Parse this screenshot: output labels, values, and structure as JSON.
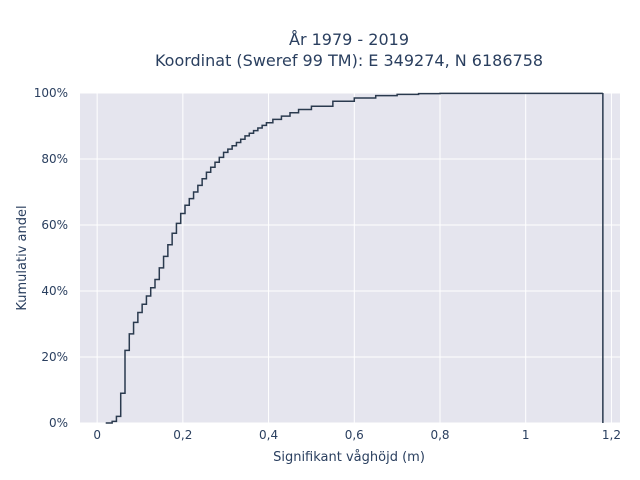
{
  "chart_data": {
    "type": "line",
    "subtype": "step-ecdf",
    "title_lines": [
      "År 1979 - 2019",
      "Koordinat (Sweref 99 TM): E 349274, N 6186758"
    ],
    "xlabel": "Signifikant våghöjd (m)",
    "ylabel": "Kumulativ andel",
    "xlim": [
      -0.04,
      1.22
    ],
    "ylim": [
      0,
      1.0
    ],
    "x_ticks": [
      0,
      0.2,
      0.4,
      0.6,
      0.8,
      1.0,
      1.2
    ],
    "x_tick_labels": [
      "0",
      "0,2",
      "0,4",
      "0,6",
      "0,8",
      "1",
      "1,2"
    ],
    "y_ticks": [
      0,
      0.2,
      0.4,
      0.6,
      0.8,
      1.0
    ],
    "y_tick_labels": [
      "0%",
      "20%",
      "40%",
      "60%",
      "80%",
      "100%"
    ],
    "grid": true,
    "legend": "none",
    "colors": {
      "line": "#2a3a4e",
      "plot_bg": "#e5e5ee",
      "grid": "#ffffff"
    },
    "x": [
      0.02,
      0.035,
      0.045,
      0.055,
      0.065,
      0.075,
      0.085,
      0.095,
      0.105,
      0.115,
      0.125,
      0.135,
      0.145,
      0.155,
      0.165,
      0.175,
      0.185,
      0.195,
      0.205,
      0.215,
      0.225,
      0.235,
      0.245,
      0.255,
      0.265,
      0.275,
      0.285,
      0.295,
      0.305,
      0.315,
      0.325,
      0.335,
      0.345,
      0.355,
      0.365,
      0.375,
      0.385,
      0.395,
      0.41,
      0.43,
      0.45,
      0.47,
      0.5,
      0.55,
      0.6,
      0.65,
      0.7,
      0.75,
      0.8,
      1.18
    ],
    "y": [
      0.0,
      0.005,
      0.02,
      0.09,
      0.22,
      0.27,
      0.305,
      0.335,
      0.36,
      0.385,
      0.41,
      0.435,
      0.47,
      0.505,
      0.54,
      0.575,
      0.605,
      0.635,
      0.66,
      0.68,
      0.7,
      0.72,
      0.74,
      0.76,
      0.775,
      0.79,
      0.805,
      0.82,
      0.83,
      0.84,
      0.85,
      0.86,
      0.87,
      0.878,
      0.886,
      0.894,
      0.902,
      0.91,
      0.92,
      0.93,
      0.94,
      0.95,
      0.96,
      0.975,
      0.985,
      0.992,
      0.996,
      0.998,
      0.999,
      1.0
    ]
  }
}
